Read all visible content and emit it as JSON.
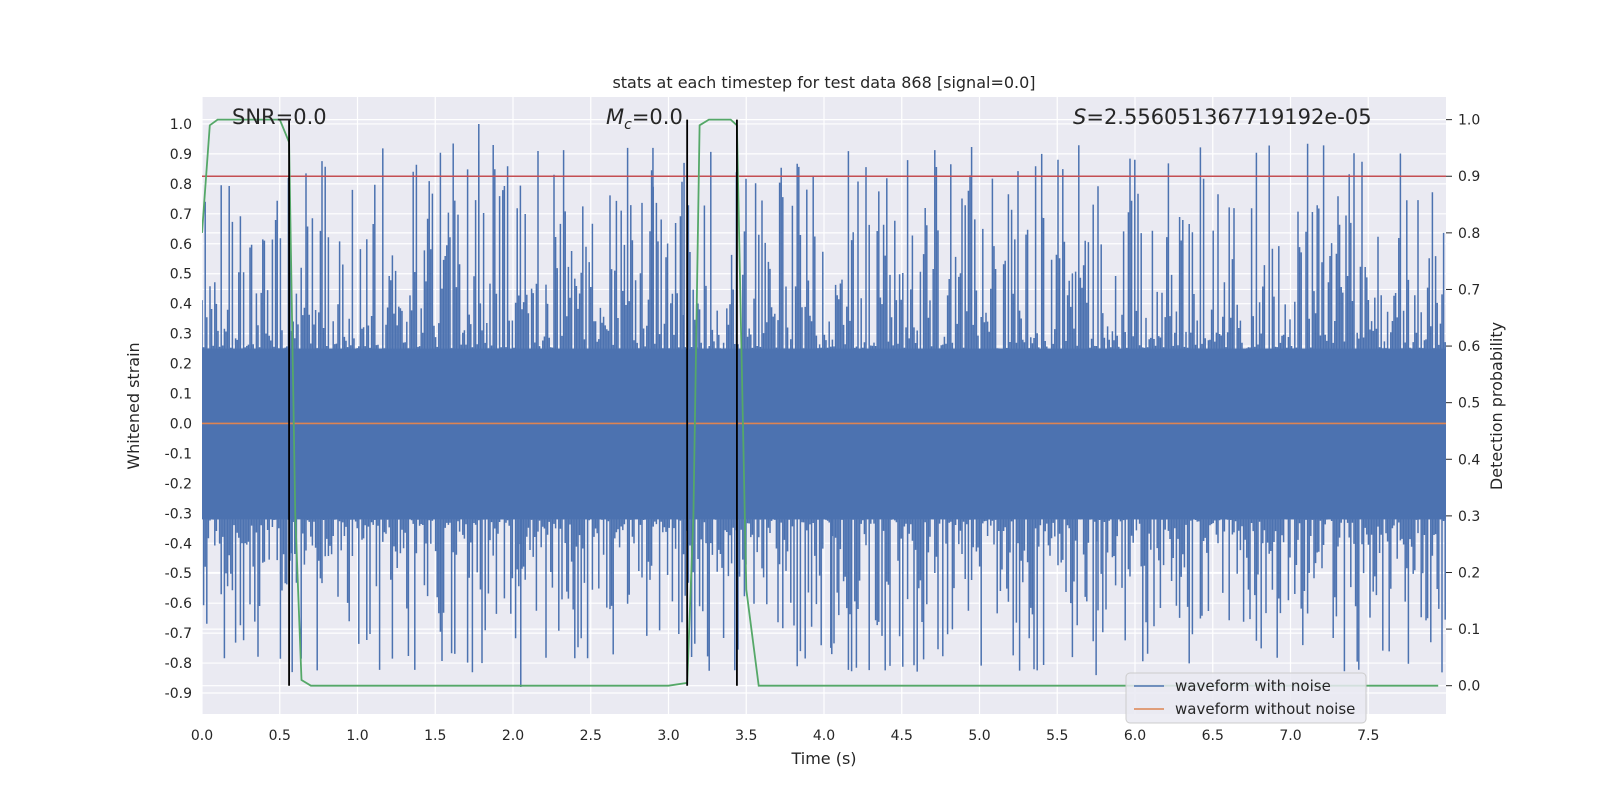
{
  "chart_data": {
    "type": "line",
    "title": "stats at each timestep for test data 868 [signal=0.0]",
    "xlabel": "Time (s)",
    "ylabel": "Whitened strain",
    "y2label": "Detection probability",
    "xlim": [
      0.0,
      8.0
    ],
    "ylim": [
      -0.97,
      1.09
    ],
    "y2lim": [
      -0.05,
      1.04
    ],
    "xticks": [
      "0.0",
      "0.5",
      "1.0",
      "1.5",
      "2.0",
      "2.5",
      "3.0",
      "3.5",
      "4.0",
      "4.5",
      "5.0",
      "5.5",
      "6.0",
      "6.5",
      "7.0",
      "7.5"
    ],
    "yticks": [
      "1.0",
      "0.9",
      "0.8",
      "0.7",
      "0.6",
      "0.5",
      "0.4",
      "0.3",
      "0.2",
      "0.1",
      "0.0",
      "-0.1",
      "-0.2",
      "-0.3",
      "-0.4",
      "-0.5",
      "-0.6",
      "-0.7",
      "-0.8",
      "-0.9"
    ],
    "y2ticks": [
      "1.0",
      "0.9",
      "0.8",
      "0.7",
      "0.6",
      "0.5",
      "0.4",
      "0.3",
      "0.2",
      "0.1",
      "0.0"
    ],
    "annotations": {
      "snr": "SNR=0.0",
      "mc_symbol": "M",
      "mc_subscript": "c",
      "mc_value": "=0.0",
      "s_symbol": "S",
      "s_value": "=2.556051367719192e-05"
    },
    "threshold": {
      "value": 0.9,
      "axis": "right",
      "color": "#c44e52"
    },
    "vertical_markers": [
      0.56,
      3.12,
      3.44
    ],
    "series": [
      {
        "name": "waveform with noise",
        "color": "#4c72b0",
        "kind": "noise",
        "seed": 868,
        "band_min": -0.32,
        "band_max": 0.25,
        "peak_max": 1.0,
        "peak_min": -0.88
      },
      {
        "name": "waveform without noise",
        "color": "#dd8452",
        "kind": "flat",
        "value": 0.0
      },
      {
        "name": "detection probability",
        "color": "#55a868",
        "axis": "right",
        "x": [
          0.0,
          0.05,
          0.1,
          0.2,
          0.3,
          0.4,
          0.5,
          0.56,
          0.6,
          0.64,
          0.7,
          1.0,
          2.0,
          3.0,
          3.12,
          3.16,
          3.2,
          3.26,
          3.3,
          3.35,
          3.4,
          3.44,
          3.5,
          3.58,
          3.8,
          5.0,
          6.0,
          7.0,
          7.95
        ],
        "values": [
          0.8,
          0.99,
          1.0,
          1.0,
          1.0,
          1.0,
          1.0,
          0.96,
          0.3,
          0.01,
          0.0,
          0.0,
          0.0,
          0.0,
          0.005,
          0.3,
          0.99,
          1.0,
          1.0,
          1.0,
          1.0,
          0.99,
          0.17,
          0.0,
          0.0,
          0.0,
          0.0,
          0.0,
          0.0
        ]
      }
    ],
    "legend": {
      "location": "lower-right",
      "entries": [
        "waveform with noise",
        "waveform without noise"
      ]
    },
    "grid": true
  }
}
